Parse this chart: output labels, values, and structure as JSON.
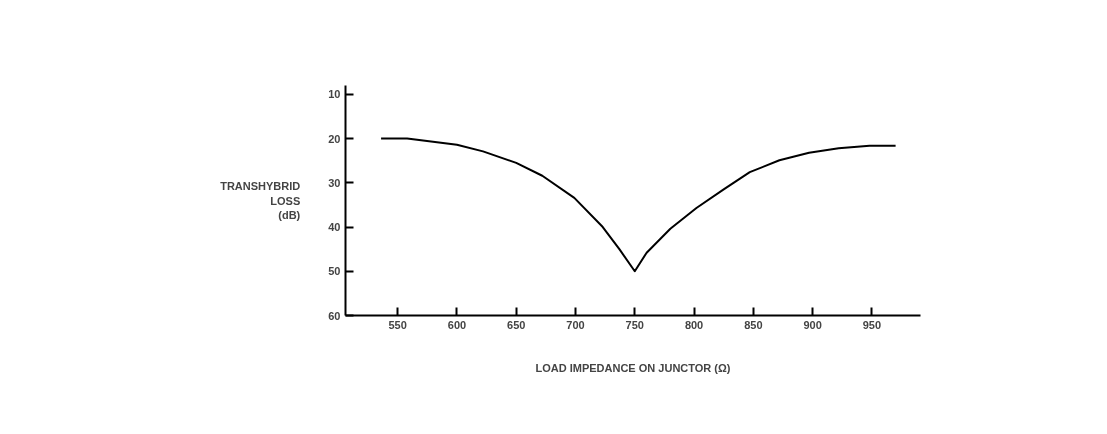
{
  "chart_data": {
    "type": "line",
    "xlabel": "LOAD IMPEDANCE ON JUNCTOR (Ω)",
    "ylabel": "TRANSHYBRID LOSS (dB)",
    "x": [
      536,
      558,
      600,
      622,
      650,
      672,
      699,
      723,
      737,
      750,
      760,
      780,
      802,
      825,
      847,
      872,
      897,
      922,
      948,
      970
    ],
    "series": [
      {
        "color": "#000000",
        "values": [
          20.0,
          20.0,
          21.4,
          22.9,
          25.5,
          28.4,
          33.4,
          40.0,
          45.0,
          50.0,
          45.8,
          40.4,
          35.7,
          31.5,
          27.6,
          24.9,
          23.2,
          22.2,
          21.6,
          21.6
        ]
      }
    ],
    "xlim": [
      506,
      991
    ],
    "ylim": [
      60,
      8
    ],
    "xticks": [
      550,
      600,
      650,
      700,
      750,
      800,
      850,
      900,
      950
    ],
    "yticks": [
      10,
      20,
      30,
      40,
      50,
      60
    ],
    "grid": false,
    "marker": "none",
    "line_style": "solid"
  }
}
